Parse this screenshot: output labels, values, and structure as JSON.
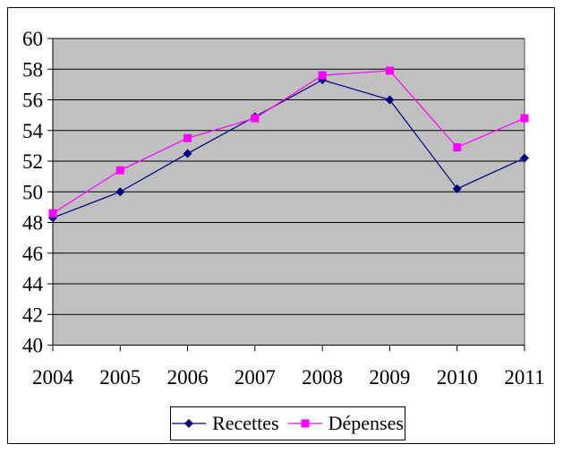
{
  "chart_data": {
    "type": "line",
    "title": "",
    "xlabel": "",
    "ylabel": "",
    "categories": [
      "2004",
      "2005",
      "2006",
      "2007",
      "2008",
      "2009",
      "2010",
      "2011"
    ],
    "series": [
      {
        "name": "Recettes",
        "color": "#000080",
        "marker": "diamond",
        "values": [
          48.3,
          50.0,
          52.5,
          54.9,
          57.3,
          56.0,
          50.2,
          52.2
        ]
      },
      {
        "name": "Dépenses",
        "color": "#FF00FF",
        "marker": "square",
        "values": [
          48.6,
          51.4,
          53.5,
          54.8,
          57.6,
          57.9,
          52.9,
          54.8
        ]
      }
    ],
    "ylim": [
      40,
      60
    ],
    "ytick_step": 2,
    "yticks": [
      40,
      42,
      44,
      46,
      48,
      50,
      52,
      54,
      56,
      58,
      60
    ],
    "grid": "horizontal",
    "plot_bg_color": "#C0C0C0",
    "plot_edge_color": "#808080",
    "gridline_color": "#000000",
    "axis_color": "#000000",
    "text_color": "#000000",
    "legend_position": "bottom-center"
  }
}
